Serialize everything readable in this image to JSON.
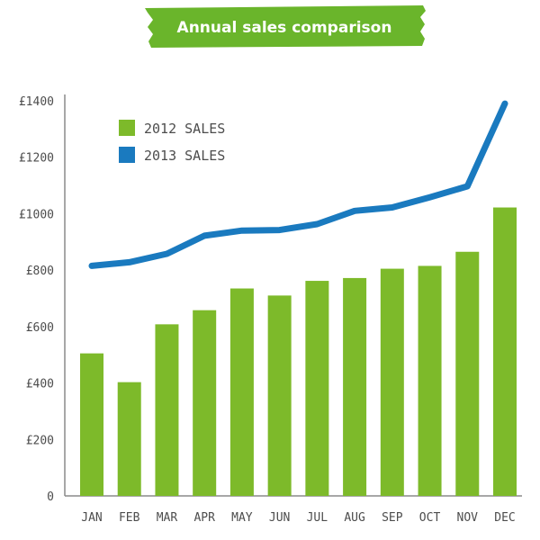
{
  "chart_data": {
    "type": "bar",
    "title": "Annual sales comparison",
    "xlabel": "",
    "ylabel": "",
    "categories": [
      "JAN",
      "FEB",
      "MAR",
      "APR",
      "MAY",
      "JUN",
      "JUL",
      "AUG",
      "SEP",
      "OCT",
      "NOV",
      "DEC"
    ],
    "ylim": [
      0,
      1400
    ],
    "yticks": [
      0,
      200,
      400,
      600,
      800,
      1000,
      1200,
      1400
    ],
    "ytick_labels": [
      "0",
      "£200",
      "£400",
      "£600",
      "£800",
      "£1000",
      "£1200",
      "£1400"
    ],
    "grid": false,
    "legend_position": "top-left",
    "series": [
      {
        "name": "2012 SALES",
        "type": "bar",
        "color": "#7dba2a",
        "values": [
          505,
          403,
          608,
          658,
          735,
          710,
          762,
          772,
          805,
          815,
          865,
          1022
        ]
      },
      {
        "name": "2013 SALES",
        "type": "line",
        "color": "#1a7abf",
        "values": [
          815,
          828,
          858,
          922,
          940,
          942,
          963,
          1010,
          1022,
          1058,
          1097,
          1390
        ]
      }
    ],
    "banner_color": "#6ab52b"
  }
}
